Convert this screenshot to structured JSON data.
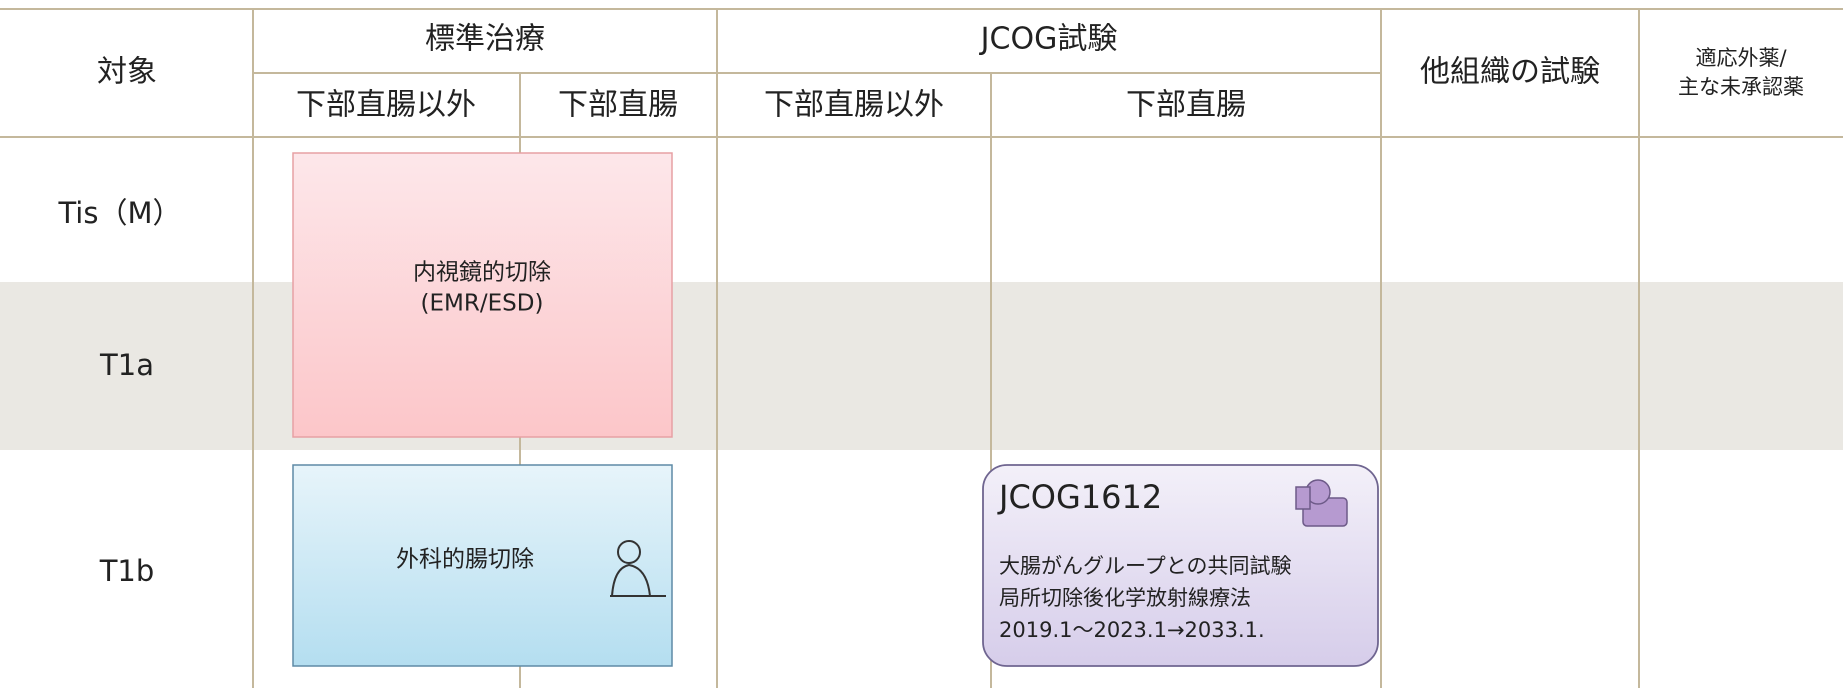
{
  "header": {
    "target": "対象",
    "standard": "標準治療",
    "jcog": "JCOG試験",
    "other": "他組織の試験",
    "offlabel": [
      "適応外薬/",
      "主な未承認薬"
    ],
    "sub": [
      "下部直腸以外",
      "下部直腸",
      "下部直腸以外",
      "下部直腸"
    ]
  },
  "rows": [
    "Tis（M）",
    "T1a",
    "T1b"
  ],
  "boxes": {
    "endoscopic": [
      "内視鏡的切除",
      "(EMR/ESD)"
    ],
    "surgery": "外科的腸切除",
    "trial": {
      "id": "JCOG1612",
      "lines": [
        "大腸がんグループとの共同試験",
        "局所切除後化学放射線療法",
        "2019.1～2023.1→2033.1."
      ]
    }
  }
}
